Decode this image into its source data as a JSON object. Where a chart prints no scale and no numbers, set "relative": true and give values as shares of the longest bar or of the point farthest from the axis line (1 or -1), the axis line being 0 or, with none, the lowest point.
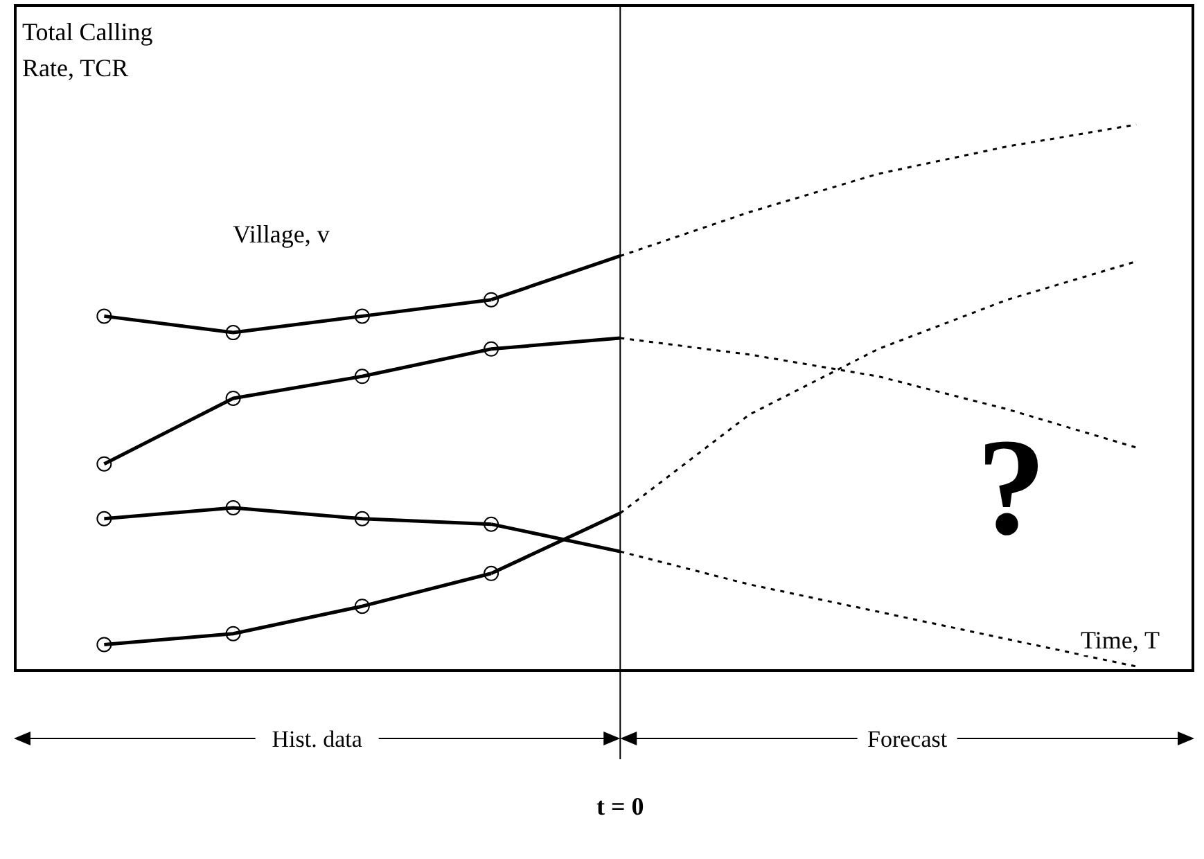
{
  "chart_data": {
    "type": "line",
    "relative": true,
    "ylabel": "Total Calling Rate, TCR",
    "xlabel": "Time, T",
    "categories": [
      null,
      null,
      null,
      null,
      null,
      null,
      null,
      null,
      null
    ],
    "series": [
      {
        "marker": "circle",
        "line_style": "solid",
        "color": "#000000",
        "values": [
          0.65,
          0.62,
          0.65,
          0.68,
          null,
          null,
          null,
          null,
          null
        ]
      },
      {
        "line_style": "solid",
        "color": "#000000",
        "values": [
          null,
          null,
          null,
          0.68,
          0.76,
          null,
          null,
          null,
          null
        ]
      },
      {
        "line_style": "dotted",
        "color": "#000000",
        "values": [
          null,
          null,
          null,
          null,
          0.76,
          0.84,
          0.91,
          0.96,
          1.0
        ]
      },
      {
        "marker": "circle",
        "line_style": "solid",
        "color": "#000000",
        "values": [
          0.38,
          0.5,
          0.54,
          0.59,
          null,
          null,
          null,
          null,
          null
        ]
      },
      {
        "line_style": "solid",
        "color": "#000000",
        "values": [
          null,
          null,
          null,
          0.59,
          0.61,
          null,
          null,
          null,
          null
        ]
      },
      {
        "line_style": "dotted",
        "color": "#000000",
        "values": [
          null,
          null,
          null,
          null,
          0.61,
          0.58,
          0.54,
          0.48,
          0.41
        ]
      },
      {
        "marker": "circle",
        "line_style": "solid",
        "color": "#000000",
        "values": [
          0.28,
          0.3,
          0.28,
          0.27,
          null,
          null,
          null,
          null,
          null
        ]
      },
      {
        "line_style": "solid",
        "color": "#000000",
        "values": [
          null,
          null,
          null,
          0.27,
          0.22,
          null,
          null,
          null,
          null
        ]
      },
      {
        "line_style": "dotted",
        "color": "#000000",
        "values": [
          null,
          null,
          null,
          null,
          0.22,
          0.16,
          0.11,
          0.06,
          0.01
        ]
      },
      {
        "marker": "circle",
        "line_style": "solid",
        "color": "#000000",
        "values": [
          0.05,
          0.07,
          0.12,
          0.18,
          null,
          null,
          null,
          null,
          null
        ]
      },
      {
        "line_style": "solid",
        "color": "#000000",
        "values": [
          null,
          null,
          null,
          0.18,
          0.29,
          null,
          null,
          null,
          null
        ]
      },
      {
        "line_style": "dotted",
        "color": "#000000",
        "values": [
          null,
          null,
          null,
          null,
          0.29,
          0.47,
          0.59,
          0.68,
          0.75
        ]
      }
    ],
    "annotations": [
      "Village, v",
      "?",
      "Hist. data",
      "Forecast",
      "t = 0"
    ],
    "legend": false,
    "grid": false
  }
}
